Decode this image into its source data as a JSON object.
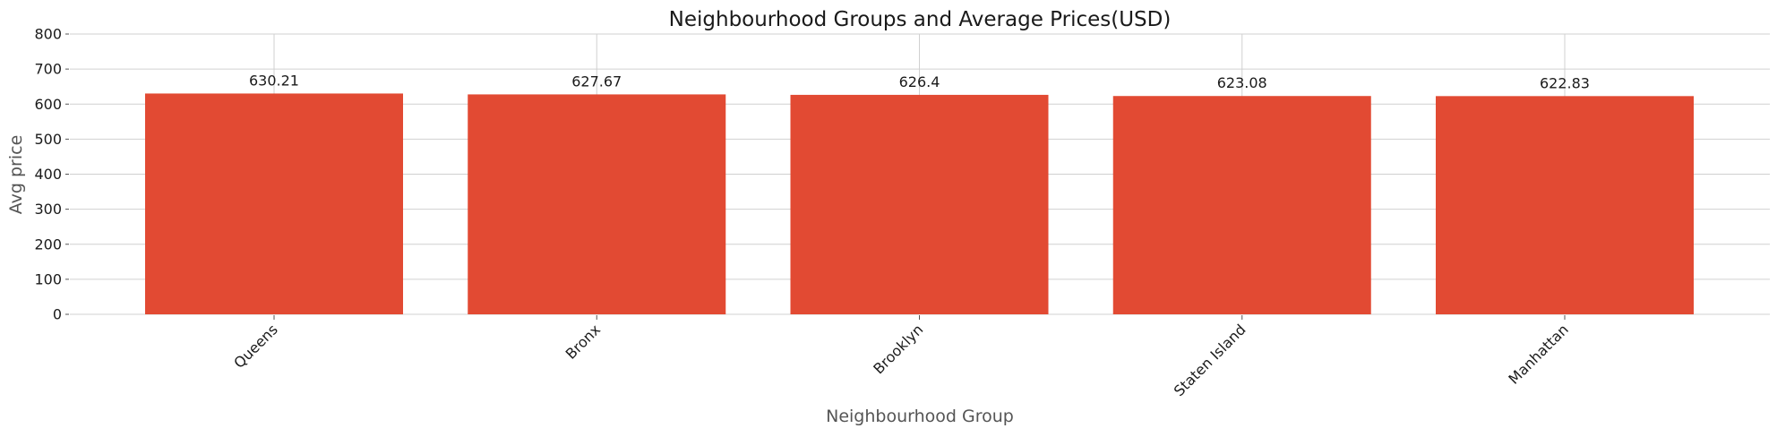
{
  "chart_data": {
    "type": "bar",
    "title": "Neighbourhood Groups and Average Prices(USD)",
    "xlabel": "Neighbourhood Group",
    "ylabel": "Avg price",
    "categories": [
      "Queens",
      "Bronx",
      "Brooklyn",
      "Staten Island",
      "Manhattan"
    ],
    "values": [
      630.21,
      627.67,
      626.4,
      623.08,
      622.83
    ],
    "data_labels": [
      "630.21",
      "627.67",
      "626.4",
      "623.08",
      "622.83"
    ],
    "ylim": [
      0,
      800
    ],
    "yticks": [
      0,
      100,
      200,
      300,
      400,
      500,
      600,
      700,
      800
    ],
    "grid": true,
    "bar_color": "#e24a33"
  }
}
